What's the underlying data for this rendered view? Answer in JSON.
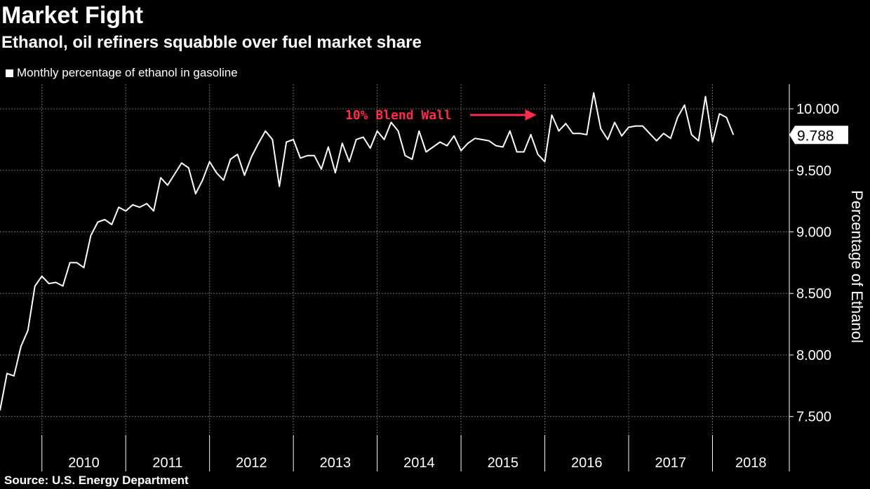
{
  "title": "Market Fight",
  "subtitle": "Ethanol, oil refiners squabble over fuel market share",
  "source": "Source: U.S. Energy Department",
  "chart_data": {
    "type": "line",
    "title": "Market Fight",
    "subtitle": "Ethanol, oil refiners squabble over fuel market share",
    "ylabel": "Percentage of Ethanol",
    "xlabel": "",
    "ylim": [
      7.35,
      10.2
    ],
    "xlim": [
      "2009-07",
      "2018-12"
    ],
    "y_ticks": [
      7.5,
      8.0,
      8.5,
      9.0,
      9.5,
      10.0
    ],
    "y_tick_labels": [
      "7.500",
      "8.000",
      "8.500",
      "9.000",
      "9.500",
      "10.000"
    ],
    "x_ticks": [
      "2010",
      "2011",
      "2012",
      "2013",
      "2014",
      "2015",
      "2016",
      "2017",
      "2018"
    ],
    "y_axis_position": "right",
    "grid": true,
    "legend": "top-left",
    "colors": {
      "line": "#ffffff",
      "background": "#000000",
      "annotation": "#ff2b4a"
    },
    "annotation": {
      "text": "10% Blend Wall",
      "points_to": [
        "2016-01",
        9.95
      ]
    },
    "last_value_label": "9.788",
    "series": [
      {
        "name": "Monthly percentage of ethanol in gasoline",
        "x_start": "2009-07",
        "frequency": "monthly",
        "values": [
          7.55,
          7.85,
          7.83,
          8.07,
          8.2,
          8.56,
          8.64,
          8.58,
          8.59,
          8.56,
          8.75,
          8.75,
          8.71,
          8.97,
          9.08,
          9.1,
          9.06,
          9.2,
          9.17,
          9.22,
          9.2,
          9.23,
          9.17,
          9.44,
          9.38,
          9.47,
          9.56,
          9.52,
          9.31,
          9.42,
          9.57,
          9.48,
          9.42,
          9.59,
          9.63,
          9.46,
          9.61,
          9.72,
          9.82,
          9.75,
          9.37,
          9.73,
          9.75,
          9.6,
          9.62,
          9.62,
          9.51,
          9.69,
          9.48,
          9.72,
          9.57,
          9.75,
          9.77,
          9.68,
          9.82,
          9.75,
          9.89,
          9.82,
          9.62,
          9.59,
          9.82,
          9.65,
          9.69,
          9.73,
          9.7,
          9.78,
          9.66,
          9.72,
          9.76,
          9.75,
          9.74,
          9.7,
          9.69,
          9.82,
          9.65,
          9.65,
          9.79,
          9.63,
          9.57,
          9.95,
          9.82,
          9.88,
          9.8,
          9.8,
          9.79,
          10.13,
          9.84,
          9.75,
          9.89,
          9.78,
          9.85,
          9.86,
          9.86,
          9.8,
          9.74,
          9.8,
          9.76,
          9.93,
          10.03,
          9.79,
          9.74,
          10.1,
          9.73,
          9.96,
          9.93,
          9.788
        ]
      }
    ]
  }
}
